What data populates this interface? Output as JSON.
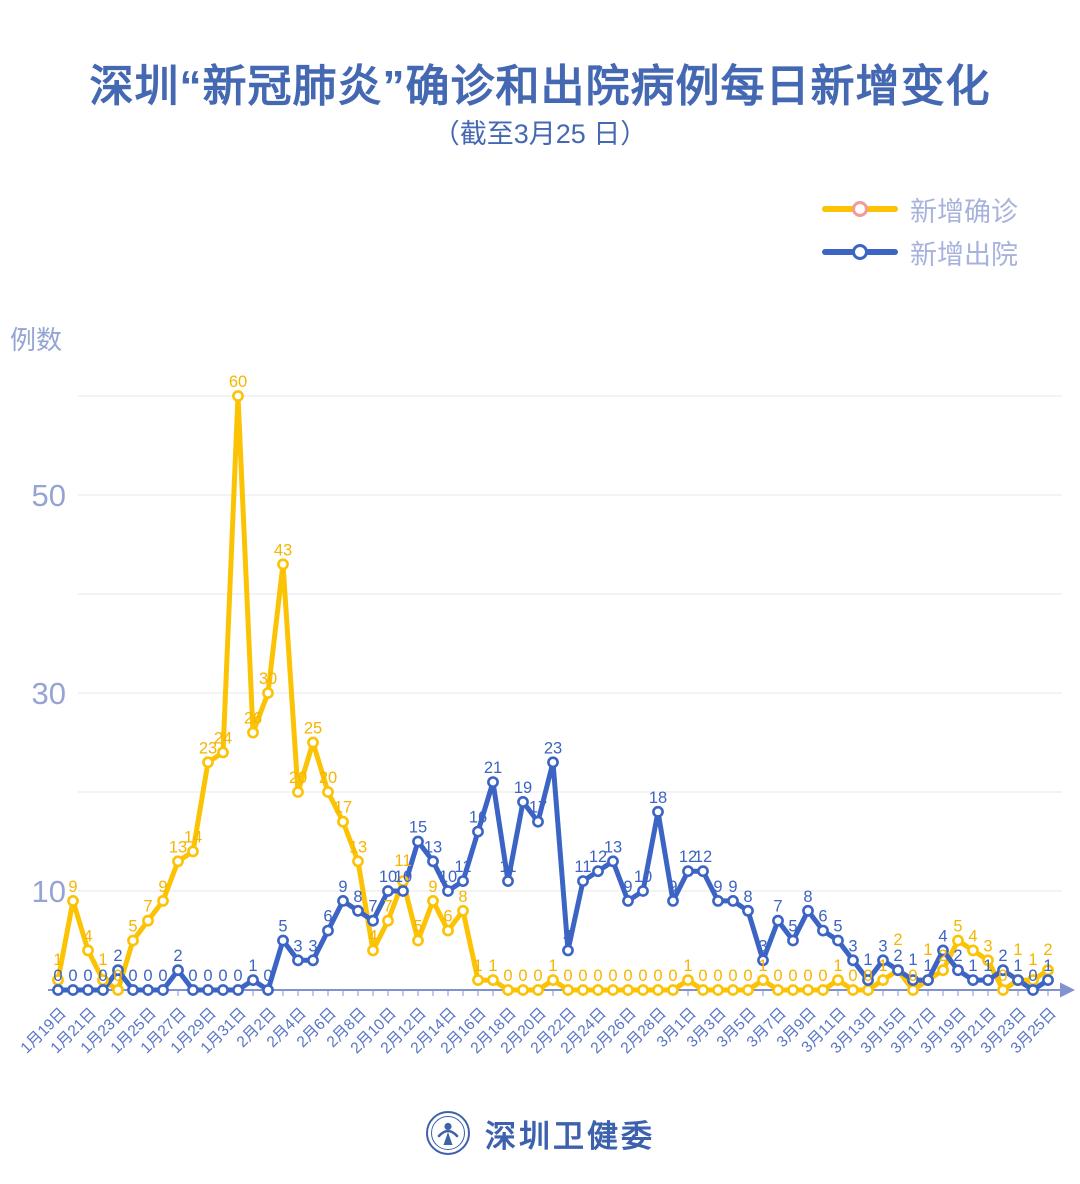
{
  "title": "深圳“新冠肺炎”确诊和出院病例每日新增变化",
  "subtitle": "（截至3月25 日）",
  "y_axis_label": "例数",
  "footer": {
    "org": "深圳卫健委"
  },
  "legend": [
    {
      "label": "新增确诊",
      "color": "#FBC303",
      "marker_ring": "#F29B9B"
    },
    {
      "label": "新增出院",
      "color": "#3C64C4",
      "marker_ring": "#3C64C4"
    }
  ],
  "colors": {
    "title": "#4568B2",
    "grid": "#E7E7E7",
    "axis_line": "#8093D0",
    "x_tick_label": "#5874C5",
    "y_tick_label": "#96A4D4",
    "confirmed": "#FBC303",
    "confirmed_label": "#F6B500",
    "discharged": "#3C64C4",
    "discharged_label": "#3C64C4"
  },
  "chart_data": {
    "type": "line",
    "x": [
      "1月19日",
      "1月20日",
      "1月21日",
      "1月22日",
      "1月23日",
      "1月24日",
      "1月25日",
      "1月26日",
      "1月27日",
      "1月28日",
      "1月29日",
      "1月30日",
      "1月31日",
      "2月1日",
      "2月2日",
      "2月3日",
      "2月4日",
      "2月5日",
      "2月6日",
      "2月7日",
      "2月8日",
      "2月9日",
      "2月10日",
      "2月11日",
      "2月12日",
      "2月13日",
      "2月14日",
      "2月15日",
      "2月16日",
      "2月17日",
      "2月18日",
      "2月19日",
      "2月20日",
      "2月21日",
      "2月22日",
      "2月23日",
      "2月24日",
      "2月25日",
      "2月26日",
      "2月27日",
      "2月28日",
      "2月29日",
      "3月1日",
      "3月2日",
      "3月3日",
      "3月4日",
      "3月5日",
      "3月6日",
      "3月7日",
      "3月8日",
      "3月9日",
      "3月10日",
      "3月11日",
      "3月12日",
      "3月13日",
      "3月14日",
      "3月15日",
      "3月16日",
      "3月17日",
      "3月18日",
      "3月19日",
      "3月20日",
      "3月21日",
      "3月22日",
      "3月23日",
      "3月24日",
      "3月25日"
    ],
    "x_tick_every": 2,
    "series": [
      {
        "name": "新增确诊",
        "values": [
          1,
          9,
          4,
          1,
          0,
          5,
          7,
          9,
          13,
          14,
          23,
          24,
          60,
          26,
          30,
          43,
          20,
          25,
          20,
          17,
          13,
          4,
          7,
          11,
          5,
          9,
          6,
          8,
          1,
          1,
          0,
          0,
          0,
          1,
          0,
          0,
          0,
          0,
          0,
          0,
          0,
          0,
          1,
          0,
          0,
          0,
          0,
          1,
          0,
          0,
          0,
          0,
          1,
          0,
          0,
          1,
          2,
          0,
          1,
          2,
          5,
          4,
          3,
          0,
          1,
          1,
          2
        ]
      },
      {
        "name": "新增出院",
        "values": [
          0,
          0,
          0,
          0,
          2,
          0,
          0,
          0,
          2,
          0,
          0,
          0,
          0,
          1,
          0,
          5,
          3,
          3,
          6,
          9,
          8,
          7,
          10,
          10,
          15,
          13,
          10,
          11,
          16,
          21,
          11,
          19,
          17,
          23,
          4,
          11,
          12,
          13,
          9,
          10,
          18,
          9,
          12,
          12,
          9,
          9,
          8,
          3,
          7,
          5,
          8,
          6,
          5,
          3,
          1,
          3,
          2,
          1,
          1,
          4,
          2,
          1,
          1,
          2,
          1,
          0,
          1
        ]
      }
    ],
    "ylabel": "例数",
    "yticks": [
      10,
      30,
      50
    ],
    "gridlines": [
      10,
      20,
      30,
      40,
      50,
      60
    ],
    "ylim": [
      0,
      62
    ],
    "grid_on": true,
    "legend_position": "top-right"
  }
}
